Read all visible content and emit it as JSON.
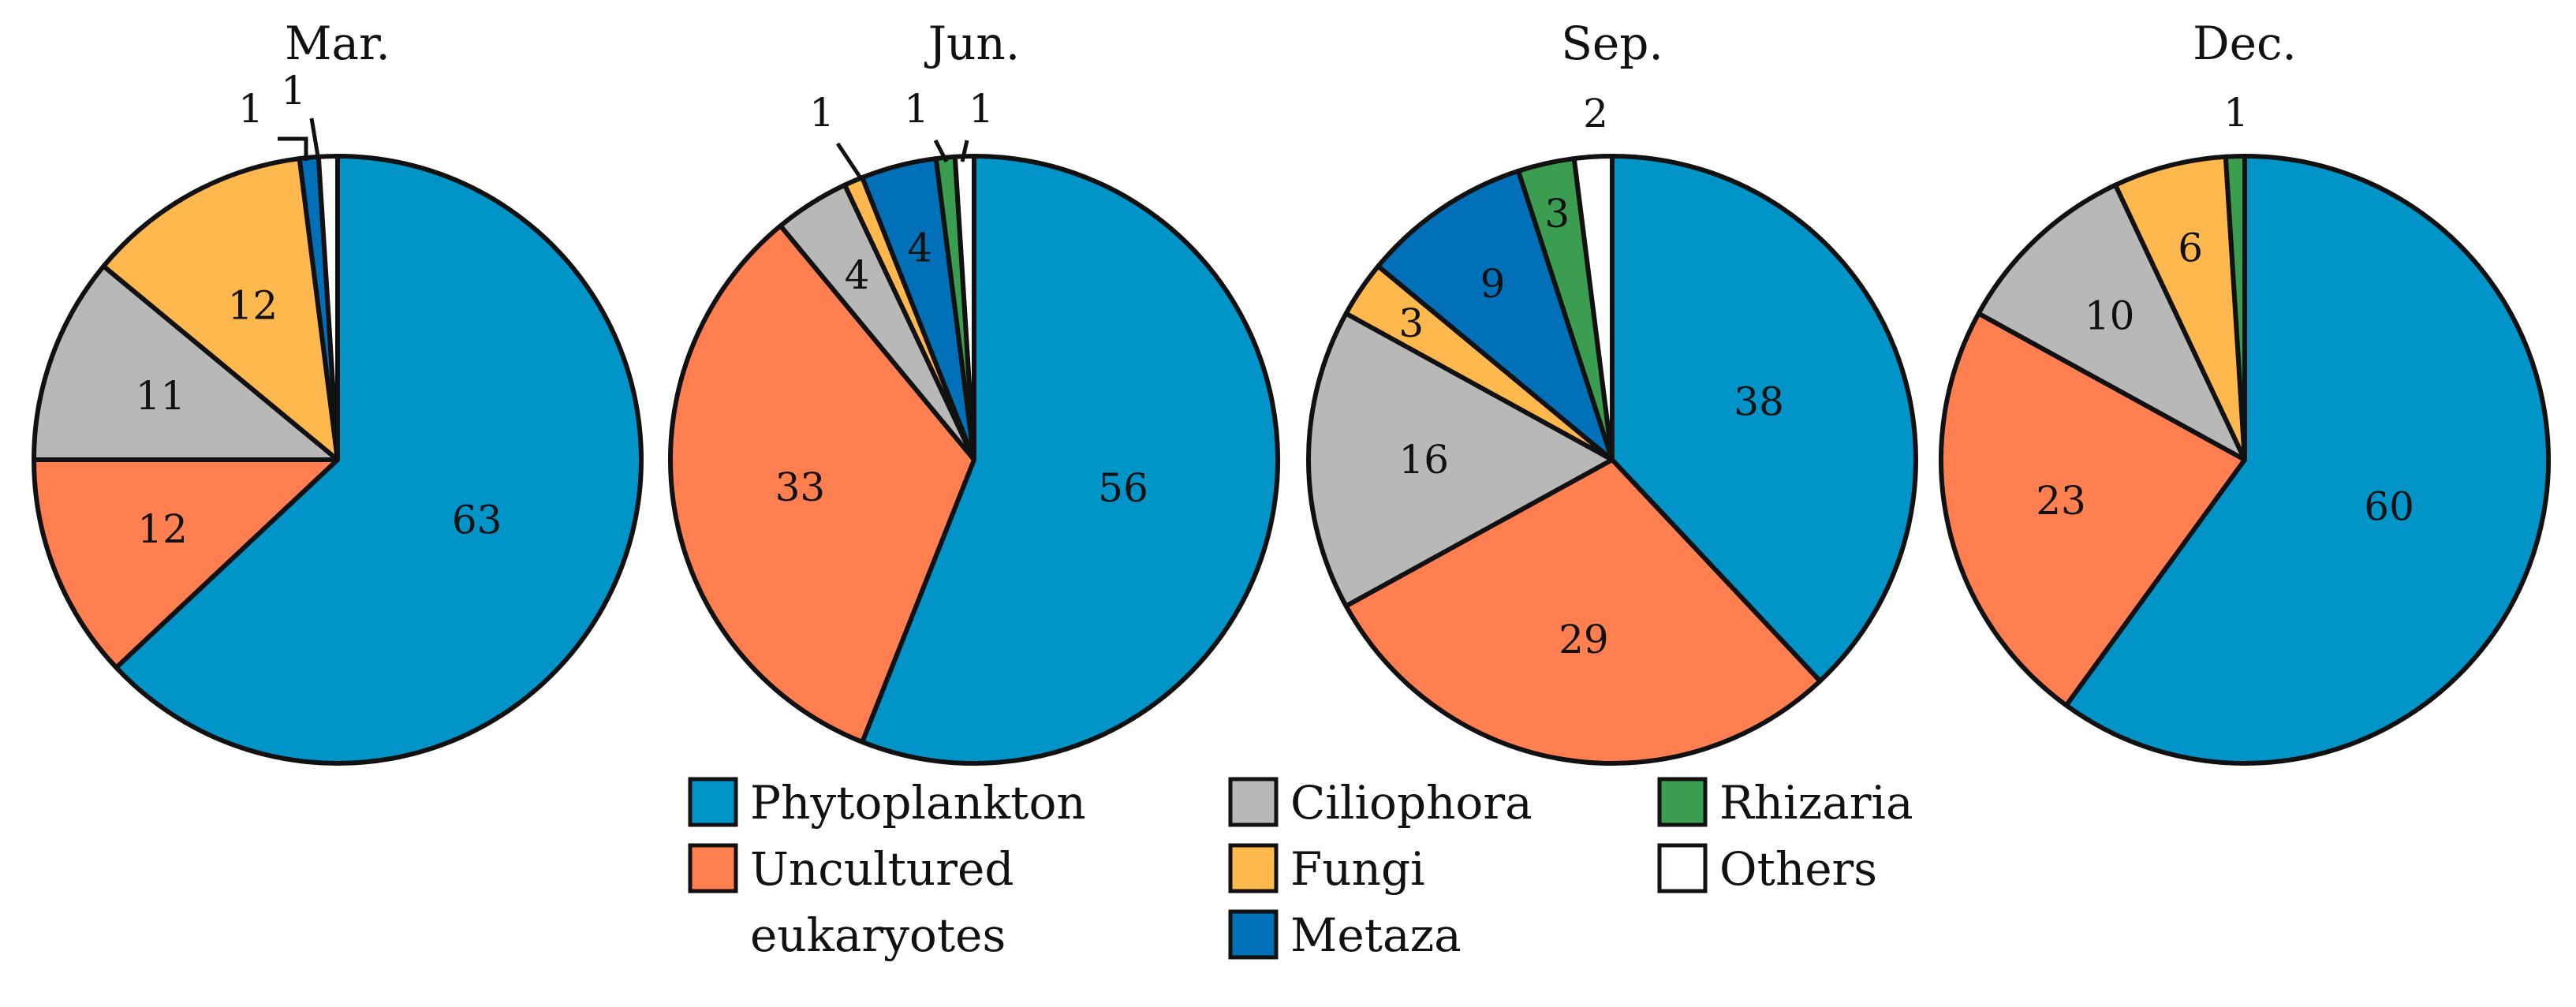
{
  "chart_data": {
    "type": "pie",
    "categories": [
      "Phytoplankton",
      "Uncultured eukaryotes",
      "Ciliophora",
      "Fungi",
      "Metaza",
      "Rhizaria",
      "Others"
    ],
    "colors": {
      "Phytoplankton": "#0094c8",
      "Uncultured eukaryotes": "#ff7f50",
      "Ciliophora": "#b8b8b8",
      "Fungi": "#ffb84d",
      "Metaza": "#0070b8",
      "Rhizaria": "#3a9d4f",
      "Others": "#ffffff"
    },
    "legend": {
      "entries": [
        {
          "category": "Phytoplankton",
          "label": "Phytoplankton"
        },
        {
          "category": "Uncultured eukaryotes",
          "label": "Uncultured",
          "label2": "eukaryotes"
        },
        {
          "category": "Ciliophora",
          "label": "Ciliophora"
        },
        {
          "category": "Fungi",
          "label": "Fungi"
        },
        {
          "category": "Metaza",
          "label": "Metaza"
        },
        {
          "category": "Rhizaria",
          "label": "Rhizaria"
        },
        {
          "category": "Others",
          "label": "Others"
        }
      ]
    },
    "pies": [
      {
        "title": "Mar.",
        "slices": [
          {
            "category": "Phytoplankton",
            "value": 63,
            "label": "63"
          },
          {
            "category": "Uncultured eukaryotes",
            "value": 12,
            "label": "12"
          },
          {
            "category": "Ciliophora",
            "value": 11,
            "label": "11"
          },
          {
            "category": "Fungi",
            "value": 12,
            "label": "12"
          },
          {
            "category": "Metaza",
            "value": 1,
            "label": "1"
          },
          {
            "category": "Others",
            "value": 1,
            "label": "1"
          }
        ]
      },
      {
        "title": "Jun.",
        "slices": [
          {
            "category": "Phytoplankton",
            "value": 56,
            "label": "56"
          },
          {
            "category": "Uncultured eukaryotes",
            "value": 33,
            "label": "33"
          },
          {
            "category": "Ciliophora",
            "value": 4,
            "label": "4"
          },
          {
            "category": "Fungi",
            "value": 1,
            "label": "1"
          },
          {
            "category": "Metaza",
            "value": 4,
            "label": "4"
          },
          {
            "category": "Rhizaria",
            "value": 1,
            "label": "1"
          },
          {
            "category": "Others",
            "value": 1,
            "label": "1"
          }
        ]
      },
      {
        "title": "Sep.",
        "slices": [
          {
            "category": "Phytoplankton",
            "value": 38,
            "label": "38"
          },
          {
            "category": "Uncultured eukaryotes",
            "value": 29,
            "label": "29"
          },
          {
            "category": "Ciliophora",
            "value": 16,
            "label": "16"
          },
          {
            "category": "Fungi",
            "value": 3,
            "label": "3"
          },
          {
            "category": "Metaza",
            "value": 9,
            "label": "9"
          },
          {
            "category": "Rhizaria",
            "value": 3,
            "label": "3"
          },
          {
            "category": "Others",
            "value": 2,
            "label": "2"
          }
        ]
      },
      {
        "title": "Dec.",
        "slices": [
          {
            "category": "Phytoplankton",
            "value": 60,
            "label": "60"
          },
          {
            "category": "Uncultured eukaryotes",
            "value": 23,
            "label": "23"
          },
          {
            "category": "Ciliophora",
            "value": 10,
            "label": "10"
          },
          {
            "category": "Fungi",
            "value": 6,
            "label": "6"
          },
          {
            "category": "Rhizaria",
            "value": 1,
            "label": "1"
          }
        ]
      }
    ]
  }
}
